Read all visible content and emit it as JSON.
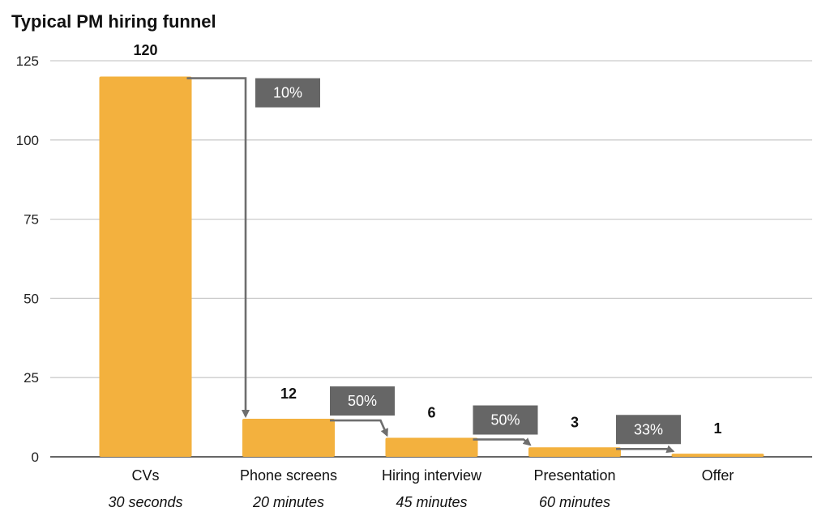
{
  "chart_data": {
    "type": "bar",
    "title": "Typical PM hiring funnel",
    "categories": [
      "CVs",
      "Phone screens",
      "Hiring interview",
      "Presentation",
      "Offer"
    ],
    "subtitles": [
      "30 seconds",
      "20 minutes",
      "45 minutes",
      "60 minutes",
      ""
    ],
    "values": [
      120,
      12,
      6,
      3,
      1
    ],
    "value_labels": [
      "120",
      "12",
      "6",
      "3",
      "1"
    ],
    "conversions": [
      "10%",
      "50%",
      "50%",
      "33%"
    ],
    "ylim": [
      0,
      125
    ],
    "yticks": [
      0,
      25,
      50,
      75,
      100,
      125
    ],
    "grid": true,
    "xlabel": "",
    "ylabel": ""
  },
  "colors": {
    "bar": "#F3B13E",
    "arrow": "#6E6E6E",
    "box": "#666666",
    "grid": "#CCCCCC",
    "axis": "#333333"
  }
}
